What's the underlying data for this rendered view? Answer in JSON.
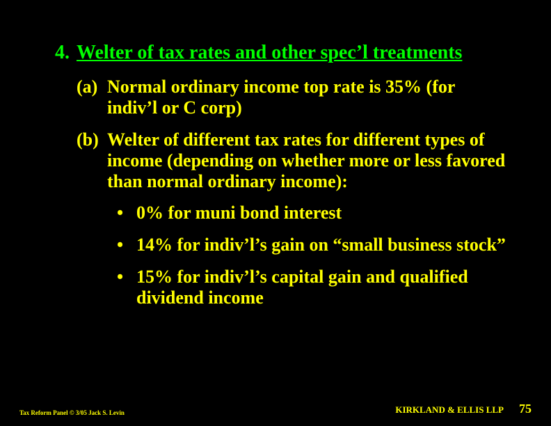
{
  "colors": {
    "background": "#000000",
    "heading": "#00ff00",
    "body": "#ffff00"
  },
  "typography": {
    "font_family": "Times New Roman",
    "heading_fontsize_pt": 21,
    "body_fontsize_pt": 20,
    "footer_left_fontsize_pt": 7,
    "footer_firm_fontsize_pt": 10,
    "footer_page_fontsize_pt": 14,
    "weight": "bold"
  },
  "main": {
    "number": "4.",
    "heading": "Welter of tax rates and other spec’l treatments"
  },
  "subs": [
    {
      "marker": "(a)",
      "text": "Normal ordinary income top rate is 35% (for indiv’l or C corp)"
    },
    {
      "marker": "(b)",
      "text": "Welter of different tax rates for different types of income (depending on whether more or less favored than normal ordinary income):"
    }
  ],
  "bullets": [
    "0% for muni bond interest",
    "14% for indiv’l’s gain on “small business stock”",
    "15% for indiv’l’s capital gain and qualified dividend income"
  ],
  "footer": {
    "left": "Tax Reform Panel © 3/05 Jack S. Levin",
    "firm": "KIRKLAND & ELLIS LLP",
    "page": "75"
  }
}
